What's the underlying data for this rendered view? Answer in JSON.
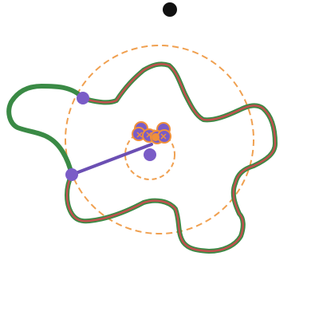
{
  "diagram": {
    "description_hidden": false,
    "colors": {
      "background": "#ffffff",
      "outer_path": "#3a8a45",
      "inner_path": "#c0504d",
      "guide_circle": "#f0a050",
      "linkage": "#6b4fb3",
      "node_fill": "#7a5cc7",
      "cluster_stroke": "#f0903a",
      "marker": "#111111"
    },
    "icons": {
      "top_marker": "dot-icon",
      "node": "circle-node-icon",
      "cluster": "rotor-cluster-icon"
    }
  }
}
